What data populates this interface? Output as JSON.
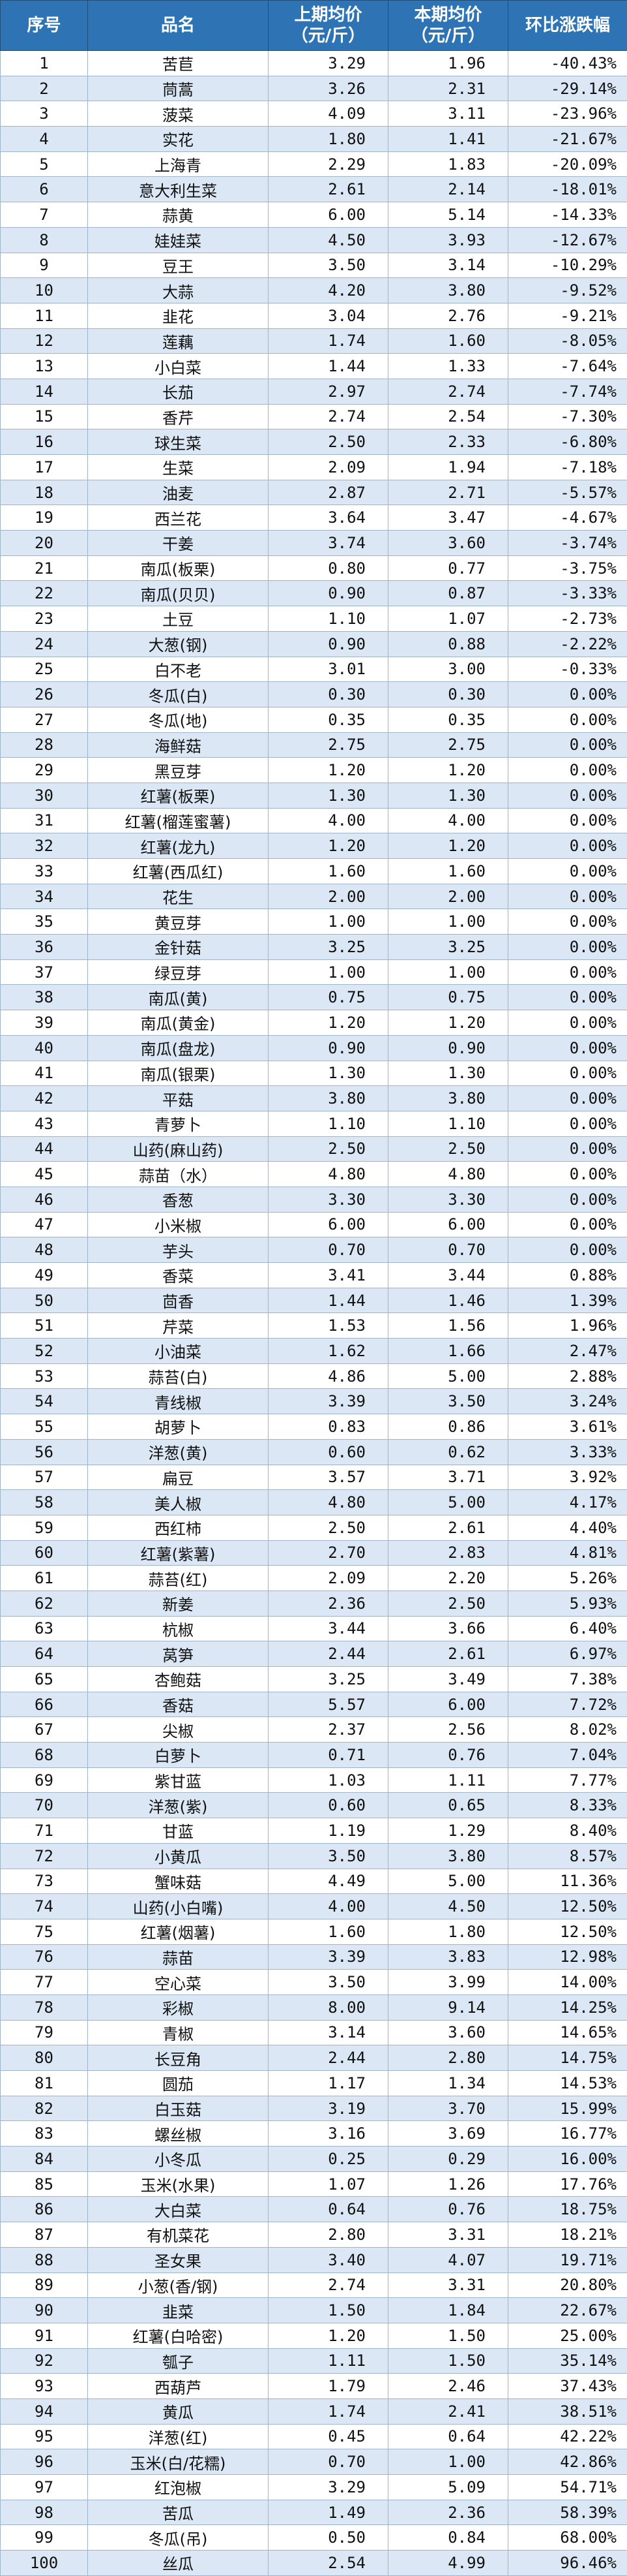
{
  "table": {
    "headers": {
      "idx": "序号",
      "name": "品名",
      "prev_line1": "上期均价",
      "prev_line2": "（元/斤）",
      "cur_line1": "本期均价",
      "cur_line2": "（元/斤）",
      "change": "环比涨跌幅"
    },
    "rows": [
      [
        "1",
        "苦苣",
        "3.29",
        "1.96",
        "-40.43%"
      ],
      [
        "2",
        "茼蒿",
        "3.26",
        "2.31",
        "-29.14%"
      ],
      [
        "3",
        "菠菜",
        "4.09",
        "3.11",
        "-23.96%"
      ],
      [
        "4",
        "实花",
        "1.80",
        "1.41",
        "-21.67%"
      ],
      [
        "5",
        "上海青",
        "2.29",
        "1.83",
        "-20.09%"
      ],
      [
        "6",
        "意大利生菜",
        "2.61",
        "2.14",
        "-18.01%"
      ],
      [
        "7",
        "蒜黄",
        "6.00",
        "5.14",
        "-14.33%"
      ],
      [
        "8",
        "娃娃菜",
        "4.50",
        "3.93",
        "-12.67%"
      ],
      [
        "9",
        "豆王",
        "3.50",
        "3.14",
        "-10.29%"
      ],
      [
        "10",
        "大蒜",
        "4.20",
        "3.80",
        "-9.52%"
      ],
      [
        "11",
        "韭花",
        "3.04",
        "2.76",
        "-9.21%"
      ],
      [
        "12",
        "莲藕",
        "1.74",
        "1.60",
        "-8.05%"
      ],
      [
        "13",
        "小白菜",
        "1.44",
        "1.33",
        "-7.64%"
      ],
      [
        "14",
        "长茄",
        "2.97",
        "2.74",
        "-7.74%"
      ],
      [
        "15",
        "香芹",
        "2.74",
        "2.54",
        "-7.30%"
      ],
      [
        "16",
        "球生菜",
        "2.50",
        "2.33",
        "-6.80%"
      ],
      [
        "17",
        "生菜",
        "2.09",
        "1.94",
        "-7.18%"
      ],
      [
        "18",
        "油麦",
        "2.87",
        "2.71",
        "-5.57%"
      ],
      [
        "19",
        "西兰花",
        "3.64",
        "3.47",
        "-4.67%"
      ],
      [
        "20",
        "干姜",
        "3.74",
        "3.60",
        "-3.74%"
      ],
      [
        "21",
        "南瓜(板栗)",
        "0.80",
        "0.77",
        "-3.75%"
      ],
      [
        "22",
        "南瓜(贝贝)",
        "0.90",
        "0.87",
        "-3.33%"
      ],
      [
        "23",
        "土豆",
        "1.10",
        "1.07",
        "-2.73%"
      ],
      [
        "24",
        "大葱(钢)",
        "0.90",
        "0.88",
        "-2.22%"
      ],
      [
        "25",
        "白不老",
        "3.01",
        "3.00",
        "-0.33%"
      ],
      [
        "26",
        "冬瓜(白)",
        "0.30",
        "0.30",
        "0.00%"
      ],
      [
        "27",
        "冬瓜(地)",
        "0.35",
        "0.35",
        "0.00%"
      ],
      [
        "28",
        "海鲜菇",
        "2.75",
        "2.75",
        "0.00%"
      ],
      [
        "29",
        "黑豆芽",
        "1.20",
        "1.20",
        "0.00%"
      ],
      [
        "30",
        "红薯(板栗)",
        "1.30",
        "1.30",
        "0.00%"
      ],
      [
        "31",
        "红薯(榴莲蜜薯)",
        "4.00",
        "4.00",
        "0.00%"
      ],
      [
        "32",
        "红薯(龙九)",
        "1.20",
        "1.20",
        "0.00%"
      ],
      [
        "33",
        "红薯(西瓜红)",
        "1.60",
        "1.60",
        "0.00%"
      ],
      [
        "34",
        "花生",
        "2.00",
        "2.00",
        "0.00%"
      ],
      [
        "35",
        "黄豆芽",
        "1.00",
        "1.00",
        "0.00%"
      ],
      [
        "36",
        "金针菇",
        "3.25",
        "3.25",
        "0.00%"
      ],
      [
        "37",
        "绿豆芽",
        "1.00",
        "1.00",
        "0.00%"
      ],
      [
        "38",
        "南瓜(黄)",
        "0.75",
        "0.75",
        "0.00%"
      ],
      [
        "39",
        "南瓜(黄金)",
        "1.20",
        "1.20",
        "0.00%"
      ],
      [
        "40",
        "南瓜(盘龙)",
        "0.90",
        "0.90",
        "0.00%"
      ],
      [
        "41",
        "南瓜(银栗)",
        "1.30",
        "1.30",
        "0.00%"
      ],
      [
        "42",
        "平菇",
        "3.80",
        "3.80",
        "0.00%"
      ],
      [
        "43",
        "青萝卜",
        "1.10",
        "1.10",
        "0.00%"
      ],
      [
        "44",
        "山药(麻山药)",
        "2.50",
        "2.50",
        "0.00%"
      ],
      [
        "45",
        "蒜苗（水）",
        "4.80",
        "4.80",
        "0.00%"
      ],
      [
        "46",
        "香葱",
        "3.30",
        "3.30",
        "0.00%"
      ],
      [
        "47",
        "小米椒",
        "6.00",
        "6.00",
        "0.00%"
      ],
      [
        "48",
        "芋头",
        "0.70",
        "0.70",
        "0.00%"
      ],
      [
        "49",
        "香菜",
        "3.41",
        "3.44",
        "0.88%"
      ],
      [
        "50",
        "茴香",
        "1.44",
        "1.46",
        "1.39%"
      ],
      [
        "51",
        "芹菜",
        "1.53",
        "1.56",
        "1.96%"
      ],
      [
        "52",
        "小油菜",
        "1.62",
        "1.66",
        "2.47%"
      ],
      [
        "53",
        "蒜苔(白)",
        "4.86",
        "5.00",
        "2.88%"
      ],
      [
        "54",
        "青线椒",
        "3.39",
        "3.50",
        "3.24%"
      ],
      [
        "55",
        "胡萝卜",
        "0.83",
        "0.86",
        "3.61%"
      ],
      [
        "56",
        "洋葱(黄)",
        "0.60",
        "0.62",
        "3.33%"
      ],
      [
        "57",
        "扁豆",
        "3.57",
        "3.71",
        "3.92%"
      ],
      [
        "58",
        "美人椒",
        "4.80",
        "5.00",
        "4.17%"
      ],
      [
        "59",
        "西红柿",
        "2.50",
        "2.61",
        "4.40%"
      ],
      [
        "60",
        "红薯(紫薯)",
        "2.70",
        "2.83",
        "4.81%"
      ],
      [
        "61",
        "蒜苔(红)",
        "2.09",
        "2.20",
        "5.26%"
      ],
      [
        "62",
        "新姜",
        "2.36",
        "2.50",
        "5.93%"
      ],
      [
        "63",
        "杭椒",
        "3.44",
        "3.66",
        "6.40%"
      ],
      [
        "64",
        "莴笋",
        "2.44",
        "2.61",
        "6.97%"
      ],
      [
        "65",
        "杏鲍菇",
        "3.25",
        "3.49",
        "7.38%"
      ],
      [
        "66",
        "香菇",
        "5.57",
        "6.00",
        "7.72%"
      ],
      [
        "67",
        "尖椒",
        "2.37",
        "2.56",
        "8.02%"
      ],
      [
        "68",
        "白萝卜",
        "0.71",
        "0.76",
        "7.04%"
      ],
      [
        "69",
        "紫甘蓝",
        "1.03",
        "1.11",
        "7.77%"
      ],
      [
        "70",
        "洋葱(紫)",
        "0.60",
        "0.65",
        "8.33%"
      ],
      [
        "71",
        "甘蓝",
        "1.19",
        "1.29",
        "8.40%"
      ],
      [
        "72",
        "小黄瓜",
        "3.50",
        "3.80",
        "8.57%"
      ],
      [
        "73",
        "蟹味菇",
        "4.49",
        "5.00",
        "11.36%"
      ],
      [
        "74",
        "山药(小白嘴)",
        "4.00",
        "4.50",
        "12.50%"
      ],
      [
        "75",
        "红薯(烟薯)",
        "1.60",
        "1.80",
        "12.50%"
      ],
      [
        "76",
        "蒜苗",
        "3.39",
        "3.83",
        "12.98%"
      ],
      [
        "77",
        "空心菜",
        "3.50",
        "3.99",
        "14.00%"
      ],
      [
        "78",
        "彩椒",
        "8.00",
        "9.14",
        "14.25%"
      ],
      [
        "79",
        "青椒",
        "3.14",
        "3.60",
        "14.65%"
      ],
      [
        "80",
        "长豆角",
        "2.44",
        "2.80",
        "14.75%"
      ],
      [
        "81",
        "圆茄",
        "1.17",
        "1.34",
        "14.53%"
      ],
      [
        "82",
        "白玉菇",
        "3.19",
        "3.70",
        "15.99%"
      ],
      [
        "83",
        "螺丝椒",
        "3.16",
        "3.69",
        "16.77%"
      ],
      [
        "84",
        "小冬瓜",
        "0.25",
        "0.29",
        "16.00%"
      ],
      [
        "85",
        "玉米(水果)",
        "1.07",
        "1.26",
        "17.76%"
      ],
      [
        "86",
        "大白菜",
        "0.64",
        "0.76",
        "18.75%"
      ],
      [
        "87",
        "有机菜花",
        "2.80",
        "3.31",
        "18.21%"
      ],
      [
        "88",
        "圣女果",
        "3.40",
        "4.07",
        "19.71%"
      ],
      [
        "89",
        "小葱(香/钢)",
        "2.74",
        "3.31",
        "20.80%"
      ],
      [
        "90",
        "韭菜",
        "1.50",
        "1.84",
        "22.67%"
      ],
      [
        "91",
        "红薯(白哈密)",
        "1.20",
        "1.50",
        "25.00%"
      ],
      [
        "92",
        "瓠子",
        "1.11",
        "1.50",
        "35.14%"
      ],
      [
        "93",
        "西葫芦",
        "1.79",
        "2.46",
        "37.43%"
      ],
      [
        "94",
        "黄瓜",
        "1.74",
        "2.41",
        "38.51%"
      ],
      [
        "95",
        "洋葱(红)",
        "0.45",
        "0.64",
        "42.22%"
      ],
      [
        "96",
        "玉米(白/花糯)",
        "0.70",
        "1.00",
        "42.86%"
      ],
      [
        "97",
        "红泡椒",
        "3.29",
        "5.09",
        "54.71%"
      ],
      [
        "98",
        "苦瓜",
        "1.49",
        "2.36",
        "58.39%"
      ],
      [
        "99",
        "冬瓜(吊)",
        "0.50",
        "0.84",
        "68.00%"
      ],
      [
        "100",
        "丝瓜",
        "2.54",
        "4.99",
        "96.46%"
      ]
    ]
  }
}
